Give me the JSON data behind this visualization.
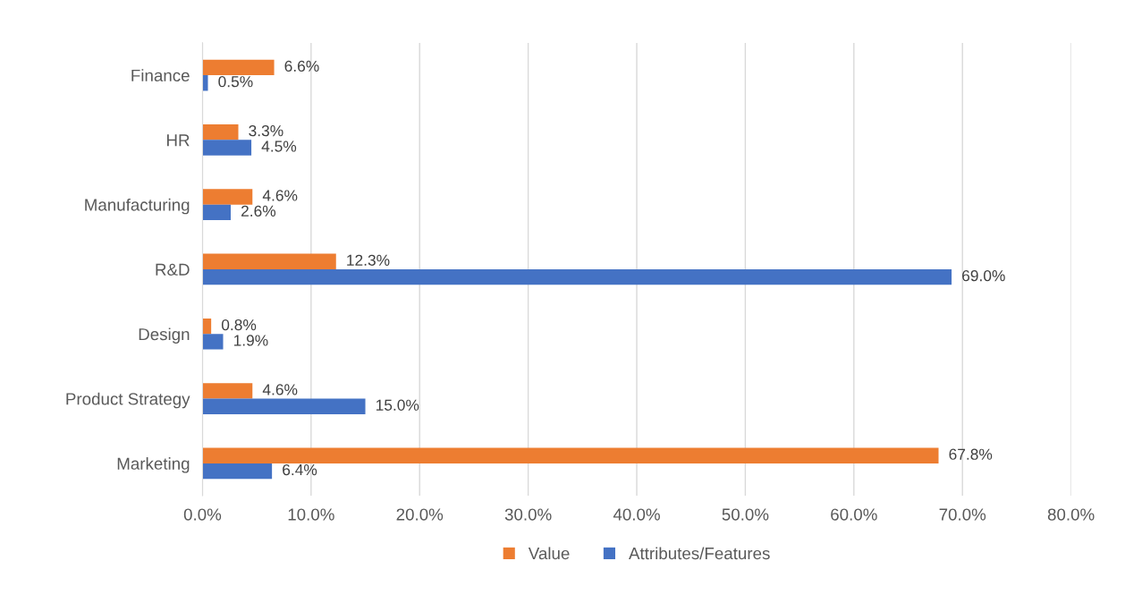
{
  "chart_data": {
    "type": "bar",
    "orientation": "horizontal",
    "categories": [
      "Finance",
      "HR",
      "Manufacturing",
      "R&D",
      "Design",
      "Product Strategy",
      "Marketing"
    ],
    "series": [
      {
        "name": "Value",
        "color": "#ed7d31",
        "values": [
          6.6,
          3.3,
          4.6,
          12.3,
          0.8,
          4.6,
          67.8
        ],
        "value_labels": [
          "6.6%",
          "3.3%",
          "4.6%",
          "12.3%",
          "0.8%",
          "4.6%",
          "67.8%"
        ]
      },
      {
        "name": "Attributes/Features",
        "color": "#4472c4",
        "values": [
          0.5,
          4.5,
          2.6,
          69.0,
          1.9,
          15.0,
          6.4
        ],
        "value_labels": [
          "0.5%",
          "4.5%",
          "2.6%",
          "69.0%",
          "1.9%",
          "15.0%",
          "6.4%"
        ]
      }
    ],
    "xlim": [
      0,
      80
    ],
    "xticks": [
      {
        "value": 0,
        "label": "0.0%"
      },
      {
        "value": 10,
        "label": "10.0%"
      },
      {
        "value": 20,
        "label": "20.0%"
      },
      {
        "value": 30,
        "label": "30.0%"
      },
      {
        "value": 40,
        "label": "40.0%"
      },
      {
        "value": 50,
        "label": "50.0%"
      },
      {
        "value": 60,
        "label": "60.0%"
      },
      {
        "value": 70,
        "label": "70.0%"
      },
      {
        "value": 80,
        "label": "80.0%"
      }
    ],
    "grid": "x",
    "legend": "bottom"
  }
}
